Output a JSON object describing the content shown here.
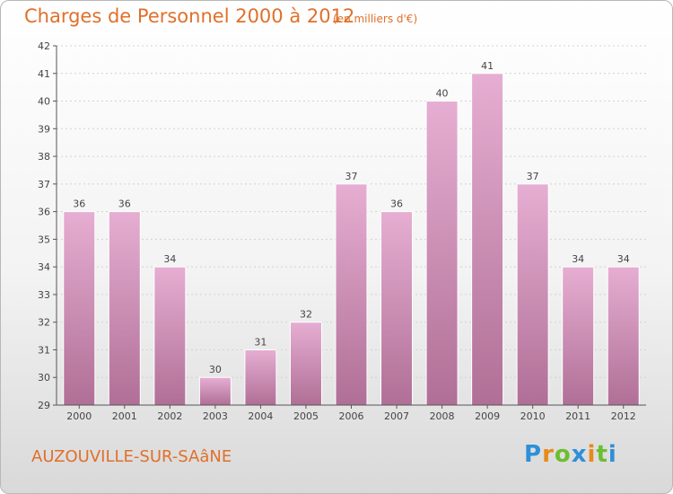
{
  "header": {
    "title": "Charges de Personnel 2000 à 2012",
    "subtitle": "(en milliers d'€)"
  },
  "footer": {
    "city": "AUZOUVILLE-SUR-SAâNE",
    "logo": {
      "letters": [
        "P",
        "r",
        "o",
        "x",
        "i",
        "t",
        "i"
      ]
    }
  },
  "colors": {
    "title": "#e0702a",
    "bar_top": "#e6aed2",
    "bar_bottom": "#b06f96",
    "axis": "#555555"
  },
  "chart_data": {
    "type": "bar",
    "title": "Charges de Personnel 2000 à 2012",
    "subtitle": "(en milliers d'€)",
    "categories": [
      "2000",
      "2001",
      "2002",
      "2003",
      "2004",
      "2005",
      "2006",
      "2007",
      "2008",
      "2009",
      "2010",
      "2011",
      "2012"
    ],
    "values": [
      36,
      36,
      34,
      30,
      31,
      32,
      37,
      36,
      40,
      41,
      37,
      34,
      34
    ],
    "ylim": [
      29,
      42
    ],
    "yticks": [
      29,
      30,
      31,
      32,
      33,
      34,
      35,
      36,
      37,
      38,
      39,
      40,
      41,
      42
    ],
    "grid": true,
    "data_labels": true
  }
}
